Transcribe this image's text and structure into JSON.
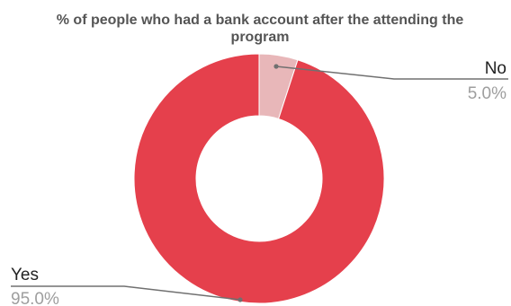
{
  "chart_data": {
    "type": "pie",
    "donut": true,
    "title_lines": [
      "% of people who had a bank account after the attending the",
      "program"
    ],
    "slices": [
      {
        "label": "No",
        "value": 5.0,
        "value_label": "5.0%",
        "color": "#e8b7b9"
      },
      {
        "label": "Yes",
        "value": 95.0,
        "value_label": "95.0%",
        "color": "#e5404c"
      }
    ],
    "legend": "none",
    "leader_color": "#707070"
  }
}
